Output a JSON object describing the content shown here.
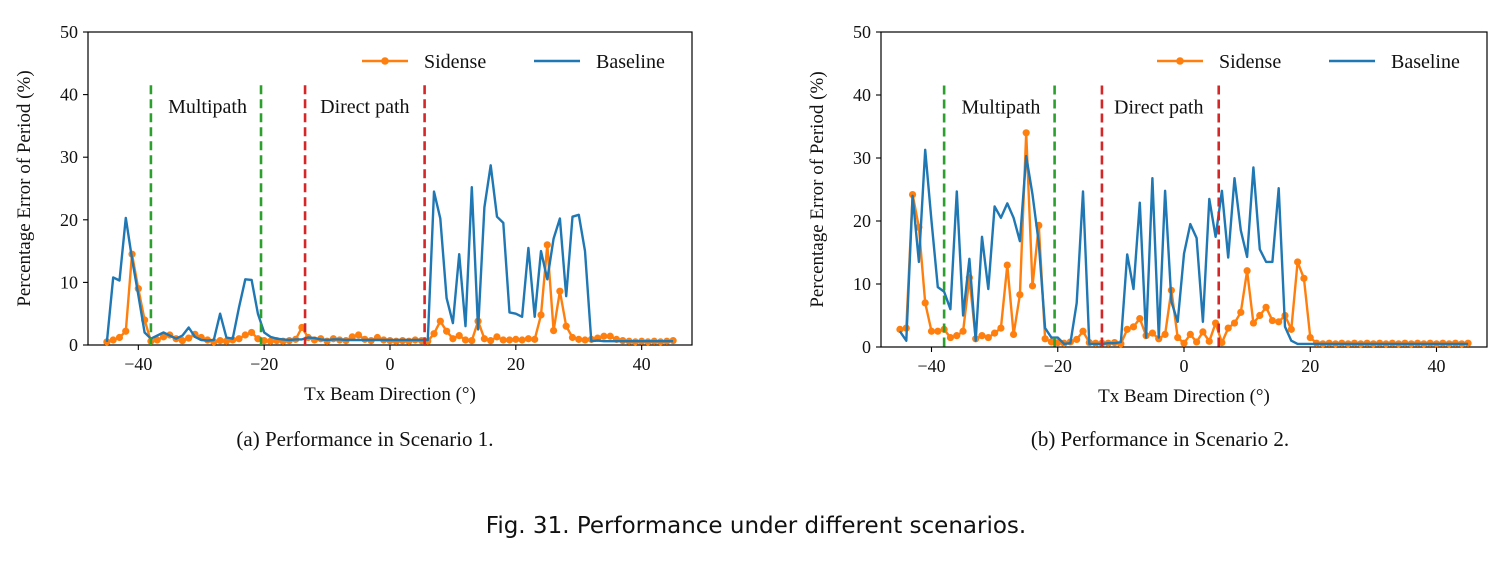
{
  "figure_caption": "Fig. 31.  Performance under different scenarios.",
  "chart_data": [
    {
      "type": "line",
      "caption": "(a)  Performance in Scenario 1.",
      "xlabel": "Tx Beam Direction (°)",
      "ylabel": "Percentage Error of Period (%)",
      "xlim": [
        -48,
        48
      ],
      "ylim": [
        0,
        50
      ],
      "xticks": [
        -40,
        -20,
        0,
        20,
        40
      ],
      "yticks": [
        0,
        10,
        20,
        30,
        40,
        50
      ],
      "grid": false,
      "legend_position": "top-right",
      "series": [
        {
          "name": "Sidense",
          "color": "#ff7f0e",
          "marker": "circle",
          "x": [
            -45,
            -44,
            -43,
            -42,
            -41,
            -40,
            -39,
            -38,
            -37,
            -36,
            -35,
            -34,
            -33,
            -32,
            -31,
            -30,
            -29,
            -28,
            -27,
            -26,
            -25,
            -24,
            -23,
            -22,
            -21,
            -20,
            -19,
            -18,
            -17,
            -16,
            -15,
            -14,
            -13,
            -12,
            -11,
            -10,
            -9,
            -8,
            -7,
            -6,
            -5,
            -4,
            -3,
            -2,
            -1,
            0,
            1,
            2,
            3,
            4,
            5,
            6,
            7,
            8,
            9,
            10,
            11,
            12,
            13,
            14,
            15,
            16,
            17,
            18,
            19,
            20,
            21,
            22,
            23,
            24,
            25,
            26,
            27,
            28,
            29,
            30,
            31,
            32,
            33,
            34,
            35,
            36,
            37,
            38,
            39,
            40,
            41,
            42,
            43,
            44,
            45
          ],
          "y": [
            0.5,
            0.8,
            1.2,
            2.2,
            14.5,
            9.0,
            4.0,
            0.6,
            0.8,
            1.3,
            1.6,
            1.0,
            0.7,
            1.1,
            1.7,
            1.2,
            0.8,
            0.5,
            0.7,
            0.6,
            0.8,
            1.0,
            1.6,
            2.0,
            1.0,
            0.7,
            0.6,
            0.7,
            0.6,
            0.7,
            0.9,
            2.8,
            1.2,
            0.8,
            1.0,
            0.6,
            1.0,
            0.8,
            0.7,
            1.3,
            1.6,
            0.9,
            0.7,
            1.2,
            0.8,
            0.7,
            0.6,
            0.7,
            0.6,
            0.8,
            0.7,
            0.6,
            1.8,
            3.8,
            2.2,
            1.0,
            1.5,
            0.8,
            0.7,
            3.8,
            1.0,
            0.7,
            1.3,
            0.8,
            0.8,
            0.9,
            0.8,
            1.0,
            0.9,
            4.8,
            16.0,
            2.3,
            8.6,
            3.0,
            1.2,
            0.9,
            0.8,
            0.9,
            1.1,
            1.4,
            1.4,
            0.9,
            0.7,
            0.6,
            0.5,
            0.6,
            0.5,
            0.6,
            0.5,
            0.6,
            0.7
          ]
        },
        {
          "name": "Baseline",
          "color": "#1f77b4",
          "marker": "none",
          "x": [
            -45,
            -44,
            -43,
            -42,
            -41,
            -40,
            -39,
            -38,
            -37,
            -36,
            -35,
            -34,
            -33,
            -32,
            -31,
            -30,
            -29,
            -28,
            -27,
            -26,
            -25,
            -24,
            -23,
            -22,
            -21,
            -20,
            -19,
            -18,
            -17,
            -16,
            -15,
            -14,
            -13,
            -12,
            -11,
            -10,
            -9,
            -8,
            -7,
            -6,
            -5,
            -4,
            -3,
            -2,
            -1,
            0,
            1,
            2,
            3,
            4,
            5,
            6,
            7,
            8,
            9,
            10,
            11,
            12,
            13,
            14,
            15,
            16,
            17,
            18,
            19,
            20,
            21,
            22,
            23,
            24,
            25,
            26,
            27,
            28,
            29,
            30,
            31,
            32,
            33,
            34,
            35,
            36,
            37,
            38,
            39,
            40,
            41,
            42,
            43,
            44,
            45
          ],
          "y": [
            0.5,
            10.8,
            10.3,
            20.3,
            13.8,
            8.0,
            2.0,
            1.0,
            1.5,
            2.0,
            1.5,
            1.0,
            1.5,
            2.8,
            1.3,
            0.8,
            0.7,
            0.8,
            5.0,
            1.2,
            1.0,
            6.0,
            10.5,
            10.4,
            5.0,
            2.0,
            1.3,
            1.0,
            0.9,
            0.8,
            0.9,
            0.9,
            1.2,
            1.1,
            0.9,
            0.8,
            0.9,
            0.9,
            0.8,
            0.8,
            0.8,
            0.8,
            0.8,
            0.8,
            0.8,
            0.8,
            0.8,
            0.8,
            0.8,
            0.8,
            0.8,
            0.8,
            24.5,
            20.2,
            7.5,
            3.5,
            14.5,
            3.0,
            25.2,
            2.5,
            22.0,
            28.7,
            20.5,
            19.5,
            5.2,
            5.0,
            4.5,
            15.5,
            4.5,
            15.0,
            10.5,
            17.0,
            20.2,
            7.8,
            20.5,
            20.8,
            15.0,
            0.6,
            0.7,
            0.6,
            0.6,
            0.6,
            0.6,
            0.6,
            0.6,
            0.6,
            0.6,
            0.6,
            0.6,
            0.6,
            0.6
          ]
        }
      ],
      "vlines": [
        {
          "x": -38,
          "color": "#2ca02c",
          "style": "dashed"
        },
        {
          "x": -20.5,
          "color": "#2ca02c",
          "style": "dashed"
        },
        {
          "x": -13.5,
          "color": "#d62728",
          "style": "dashed"
        },
        {
          "x": 5.5,
          "color": "#d62728",
          "style": "dashed"
        }
      ],
      "annotations": [
        {
          "text": "Multipath",
          "x": -29,
          "y": 38
        },
        {
          "text": "Direct path",
          "x": -4,
          "y": 38
        }
      ]
    },
    {
      "type": "line",
      "caption": "(b)  Performance in Scenario 2.",
      "xlabel": "Tx Beam Direction (°)",
      "ylabel": "Percentage Error of Period (%)",
      "xlim": [
        -48,
        48
      ],
      "ylim": [
        0,
        50
      ],
      "xticks": [
        -40,
        -20,
        0,
        20,
        40
      ],
      "yticks": [
        0,
        10,
        20,
        30,
        40,
        50
      ],
      "grid": false,
      "legend_position": "top-right",
      "series": [
        {
          "name": "Sidense",
          "color": "#ff7f0e",
          "marker": "circle",
          "x": [
            -45,
            -44,
            -43,
            -42,
            -41,
            -40,
            -39,
            -38,
            -37,
            -36,
            -35,
            -34,
            -33,
            -32,
            -31,
            -30,
            -29,
            -28,
            -27,
            -26,
            -25,
            -24,
            -23,
            -22,
            -21,
            -20,
            -19,
            -18,
            -17,
            -16,
            -15,
            -14,
            -13,
            -12,
            -11,
            -10,
            -9,
            -8,
            -7,
            -6,
            -5,
            -4,
            -3,
            -2,
            -1,
            0,
            1,
            2,
            3,
            4,
            5,
            6,
            7,
            8,
            9,
            10,
            11,
            12,
            13,
            14,
            15,
            16,
            17,
            18,
            19,
            20,
            21,
            22,
            23,
            24,
            25,
            26,
            27,
            28,
            29,
            30,
            31,
            32,
            33,
            34,
            35,
            36,
            37,
            38,
            39,
            40,
            41,
            42,
            43,
            44,
            45
          ],
          "y": [
            2.8,
            3.0,
            24.2,
            19.0,
            7.0,
            2.5,
            2.5,
            2.8,
            1.5,
            1.8,
            2.5,
            11.0,
            1.3,
            1.8,
            1.5,
            2.2,
            3.0,
            13.0,
            2.0,
            8.3,
            34.0,
            9.7,
            19.3,
            1.3,
            0.8,
            0.7,
            0.6,
            0.8,
            1.2,
            2.5,
            0.7,
            0.6,
            0.6,
            0.6,
            0.7,
            0.5,
            2.8,
            3.2,
            4.5,
            1.8,
            2.2,
            1.3,
            2.0,
            9.0,
            1.5,
            0.6,
            2.0,
            0.8,
            2.4,
            0.9,
            3.8,
            0.7,
            3.0,
            3.8,
            5.5,
            12.1,
            3.8,
            5.0,
            6.3,
            4.2,
            4.0,
            5.0,
            2.8,
            13.5,
            10.9,
            1.5,
            0.6,
            0.5,
            0.6,
            0.5,
            0.6,
            0.5,
            0.6,
            0.5,
            0.6,
            0.5,
            0.6,
            0.5,
            0.6,
            0.5,
            0.6,
            0.5,
            0.6,
            0.5,
            0.6,
            0.5,
            0.6,
            0.5,
            0.6,
            0.5,
            0.6
          ]
        },
        {
          "name": "Baseline",
          "color": "#1f77b4",
          "marker": "none",
          "x": [
            -45,
            -44,
            -43,
            -42,
            -41,
            -40,
            -39,
            -38,
            -37,
            -36,
            -35,
            -34,
            -33,
            -32,
            -31,
            -30,
            -29,
            -28,
            -27,
            -26,
            -25,
            -24,
            -23,
            -22,
            -21,
            -20,
            -19,
            -18,
            -17,
            -16,
            -15,
            -14,
            -13,
            -12,
            -11,
            -10,
            -9,
            -8,
            -7,
            -6,
            -5,
            -4,
            -3,
            -2,
            -1,
            0,
            1,
            2,
            3,
            4,
            5,
            6,
            7,
            8,
            9,
            10,
            11,
            12,
            13,
            14,
            15,
            16,
            17,
            18,
            19,
            20,
            21,
            22,
            23,
            24,
            25,
            26,
            27,
            28,
            29,
            30,
            31,
            32,
            33,
            34,
            35,
            36,
            37,
            38,
            39,
            40,
            41,
            42,
            43,
            44,
            45
          ],
          "y": [
            2.5,
            1.0,
            24.0,
            13.5,
            31.3,
            20.0,
            9.5,
            8.8,
            6.0,
            24.7,
            5.0,
            14.0,
            1.0,
            17.5,
            9.2,
            22.3,
            20.5,
            22.8,
            20.5,
            16.8,
            30.3,
            24.2,
            16.5,
            3.0,
            1.5,
            1.5,
            0.5,
            0.6,
            7.0,
            24.7,
            0.5,
            0.5,
            0.5,
            0.6,
            0.6,
            0.8,
            14.7,
            9.2,
            22.9,
            1.5,
            26.8,
            1.5,
            24.8,
            7.2,
            4.0,
            14.8,
            19.5,
            17.3,
            4.0,
            23.5,
            17.5,
            24.8,
            14.2,
            26.8,
            18.5,
            14.3,
            28.5,
            15.5,
            13.5,
            13.5,
            25.2,
            3.2,
            1.0,
            0.5,
            0.5,
            0.5,
            0.5,
            0.5,
            0.5,
            0.5,
            0.5,
            0.5,
            0.5,
            0.5,
            0.5,
            0.5,
            0.5,
            0.5,
            0.5,
            0.5,
            0.5,
            0.5,
            0.5,
            0.5,
            0.5,
            0.5,
            0.5,
            0.5,
            0.5,
            0.5,
            0.5
          ]
        }
      ],
      "vlines": [
        {
          "x": -38,
          "color": "#2ca02c",
          "style": "dashed"
        },
        {
          "x": -20.5,
          "color": "#2ca02c",
          "style": "dashed"
        },
        {
          "x": -13,
          "color": "#d62728",
          "style": "dashed"
        },
        {
          "x": 5.5,
          "color": "#d62728",
          "style": "dashed"
        }
      ],
      "annotations": [
        {
          "text": "Multipath",
          "x": -29,
          "y": 38
        },
        {
          "text": "Direct path",
          "x": -4,
          "y": 38
        }
      ]
    }
  ]
}
